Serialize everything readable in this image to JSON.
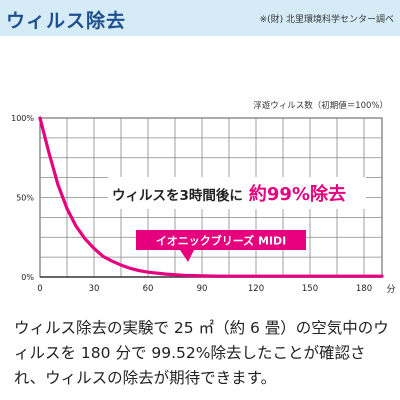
{
  "header": {
    "title": "ウィルス除去",
    "source": "※(財) 北里環境科学センター調べ"
  },
  "chart_data": {
    "type": "line",
    "ylabel": "浮遊ウィルス数（初期値＝100%）",
    "xlabel": "分",
    "x_ticks": [
      "0",
      "30",
      "60",
      "90",
      "120",
      "150",
      "180"
    ],
    "y_ticks": [
      "0%",
      "50%",
      "100%"
    ],
    "xlim": [
      0,
      190
    ],
    "ylim": [
      0,
      100
    ],
    "grid": true,
    "series": [
      {
        "name": "イオニックブリーズ MIDI",
        "color": "#e6007e",
        "x": [
          0,
          5,
          10,
          15,
          20,
          25,
          30,
          35,
          40,
          45,
          50,
          55,
          60,
          70,
          80,
          90,
          100,
          120,
          150,
          180,
          190
        ],
        "y": [
          100,
          78,
          58,
          43,
          32,
          24,
          18,
          13,
          10,
          7.5,
          5.5,
          4,
          3,
          1.8,
          1.1,
          0.7,
          0.5,
          0.5,
          0.5,
          0.5,
          0.5
        ]
      }
    ],
    "annotation": {
      "text": "ウィルスを3時間後に",
      "highlight": "約99%除去",
      "highlight_color": "#e6007e"
    }
  },
  "body": {
    "text": "ウィルス除去の実験で 25 ㎡（約 6 畳）の空気中のウィルスを 180 分で 99.52%除去したことが確認され、ウィルスの除去が期待できます。"
  }
}
